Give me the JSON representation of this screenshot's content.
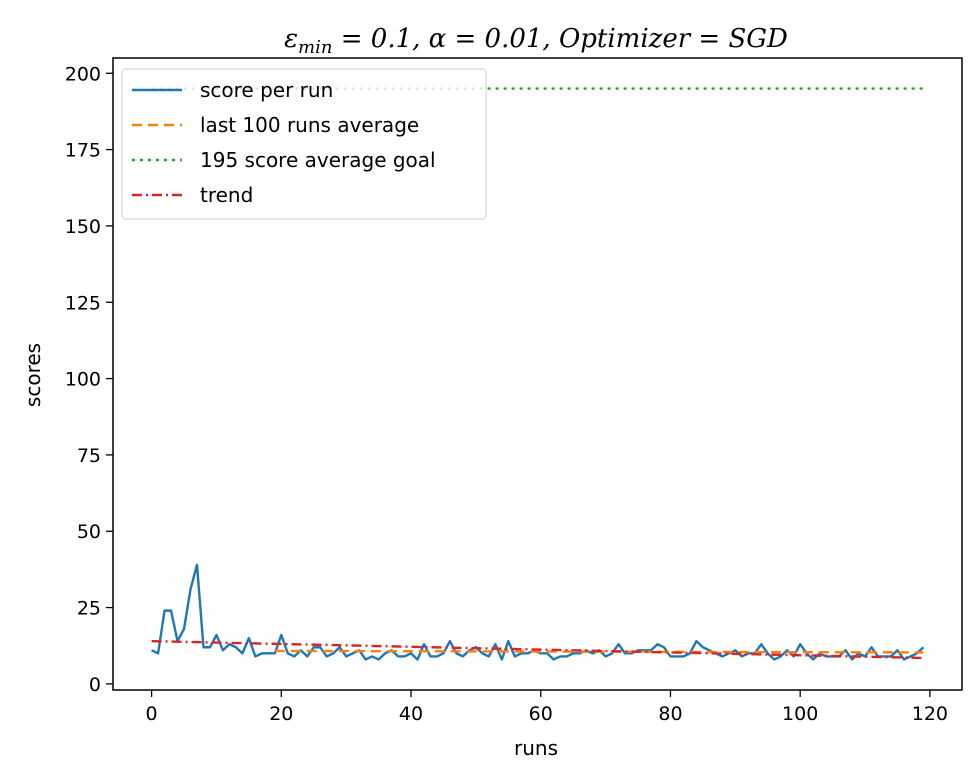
{
  "chart_data": {
    "type": "line",
    "title": "εmin = 0.1, α = 0.01, Optimizer = SGD",
    "title_parts": {
      "epsilon": "ε",
      "sub": "min",
      "rest": " = 0.1, α = 0.01, Optimizer = SGD"
    },
    "xlabel": "runs",
    "ylabel": "scores",
    "xlim": [
      -5.95,
      124.95
    ],
    "ylim": [
      -2,
      205
    ],
    "xticks": [
      0,
      20,
      40,
      60,
      80,
      100,
      120
    ],
    "yticks": [
      0,
      25,
      50,
      75,
      100,
      125,
      150,
      175,
      200
    ],
    "legend_position": "top-left",
    "grid": false,
    "series": [
      {
        "name": "score per run",
        "style": "solid",
        "color": "#1f77b4",
        "x": [
          0,
          1,
          2,
          3,
          4,
          5,
          6,
          7,
          8,
          9,
          10,
          11,
          12,
          13,
          14,
          15,
          16,
          17,
          18,
          19,
          20,
          21,
          22,
          23,
          24,
          25,
          26,
          27,
          28,
          29,
          30,
          31,
          32,
          33,
          34,
          35,
          36,
          37,
          38,
          39,
          40,
          41,
          42,
          43,
          44,
          45,
          46,
          47,
          48,
          49,
          50,
          51,
          52,
          53,
          54,
          55,
          56,
          57,
          58,
          59,
          60,
          61,
          62,
          63,
          64,
          65,
          66,
          67,
          68,
          69,
          70,
          71,
          72,
          73,
          74,
          75,
          76,
          77,
          78,
          79,
          80,
          81,
          82,
          83,
          84,
          85,
          86,
          87,
          88,
          89,
          90,
          91,
          92,
          93,
          94,
          95,
          96,
          97,
          98,
          99,
          100,
          101,
          102,
          103,
          104,
          105,
          106,
          107,
          108,
          109,
          110,
          111,
          112,
          113,
          114,
          115,
          116,
          117,
          118,
          119
        ],
        "values": [
          11,
          10,
          24,
          24,
          14,
          18,
          31,
          39,
          12,
          12,
          16,
          11,
          13,
          12,
          10,
          15,
          9,
          10,
          10,
          10,
          16,
          10,
          9,
          11,
          9,
          12,
          12,
          9,
          10,
          12,
          9,
          10,
          11,
          8,
          9,
          8,
          10,
          11,
          9,
          9,
          10,
          8,
          13,
          9,
          9,
          10,
          14,
          10,
          9,
          11,
          12,
          10,
          9,
          13,
          8,
          14,
          9,
          10,
          10,
          11,
          10,
          10,
          8,
          9,
          9,
          10,
          10,
          11,
          10,
          11,
          9,
          10,
          13,
          10,
          10,
          11,
          11,
          11,
          13,
          12,
          9,
          9,
          9,
          10,
          14,
          12,
          11,
          10,
          9,
          10,
          11,
          9,
          10,
          10,
          13,
          10,
          8,
          9,
          11,
          9,
          13,
          10,
          8,
          10,
          9,
          9,
          9,
          11,
          8,
          10,
          9,
          12,
          9,
          9,
          9,
          11,
          8,
          9,
          10,
          12
        ]
      },
      {
        "name": "last 100 runs average",
        "style": "dashed",
        "color": "#ff7f0e",
        "x": [
          19,
          119
        ],
        "values": [
          10.8,
          10.3
        ]
      },
      {
        "name": "195 score average goal",
        "style": "dotted",
        "color": "#2ca02c",
        "x": [
          0,
          119
        ],
        "values": [
          195,
          195
        ]
      },
      {
        "name": "trend",
        "style": "dashdot",
        "color": "#d62728",
        "x": [
          0,
          119
        ],
        "values": [
          14,
          8.5
        ]
      }
    ]
  }
}
